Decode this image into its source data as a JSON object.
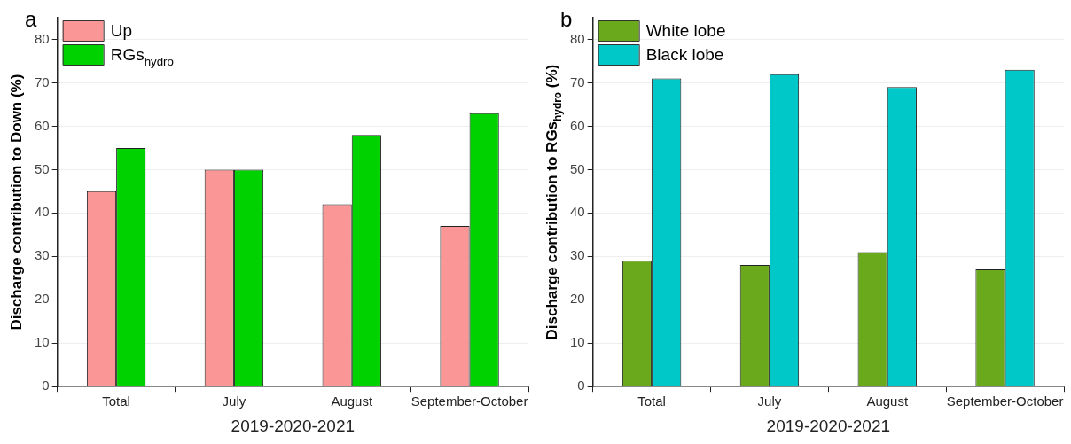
{
  "chart_data": [
    {
      "type": "bar",
      "title": "a",
      "xlabel": "2019-2020-2021",
      "ylabel": "Discharge contribution to Down (%)",
      "categories": [
        "Total",
        "July",
        "August",
        "September-October"
      ],
      "series": [
        {
          "name": "Up",
          "color": "#fa9696",
          "values": [
            45,
            50,
            42,
            37
          ]
        },
        {
          "name": "RGs$_{hydro}$",
          "color": "#00d200",
          "values": [
            55,
            50,
            58,
            63
          ]
        }
      ],
      "ylim": [
        0,
        85
      ],
      "yticks": [
        0,
        10,
        20,
        30,
        40,
        50,
        60,
        70,
        80
      ],
      "grid": "y",
      "legend": "top left"
    },
    {
      "type": "bar",
      "title": "b",
      "xlabel": "2019-2020-2021",
      "ylabel": "Discharge contribution to RGs$_{hydro}$ (%)",
      "categories": [
        "Total",
        "July",
        "August",
        "September-October"
      ],
      "series": [
        {
          "name": "White lobe",
          "color": "#6aa81c",
          "values": [
            29,
            28,
            31,
            27
          ]
        },
        {
          "name": "Black lobe",
          "color": "#00c8c8",
          "values": [
            71,
            72,
            69,
            73
          ]
        }
      ],
      "ylim": [
        0,
        85
      ],
      "yticks": [
        0,
        10,
        20,
        30,
        40,
        50,
        60,
        70,
        80
      ],
      "grid": "y",
      "legend": "top left"
    }
  ]
}
